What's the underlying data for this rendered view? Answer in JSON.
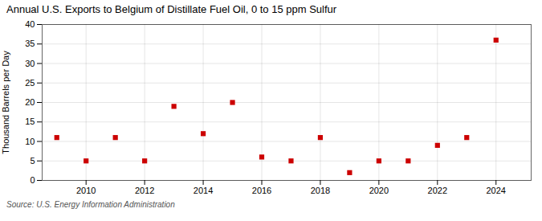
{
  "chart_data": {
    "type": "scatter",
    "title": "Annual U.S. Exports to Belgium of Distillate Fuel Oil, 0 to 15 ppm Sulfur",
    "ylabel": "Thousand Barrels per Day",
    "caption": "Source: U.S. Energy Information Administration",
    "x": [
      2009,
      2010,
      2011,
      2012,
      2013,
      2014,
      2015,
      2016,
      2017,
      2018,
      2019,
      2020,
      2021,
      2022,
      2023,
      2024
    ],
    "values": [
      11,
      5,
      11,
      5,
      19,
      12,
      20,
      6,
      5,
      11,
      2,
      5,
      5,
      9,
      11,
      36
    ],
    "color": "#cc0000",
    "marker": "square",
    "xlim": [
      2008.5,
      2025.2
    ],
    "xticks": [
      2010,
      2012,
      2014,
      2016,
      2018,
      2020,
      2022,
      2024
    ],
    "ylim": [
      0,
      40
    ],
    "yticks": [
      0,
      5,
      10,
      15,
      20,
      25,
      30,
      35,
      40
    ],
    "grid": true
  }
}
